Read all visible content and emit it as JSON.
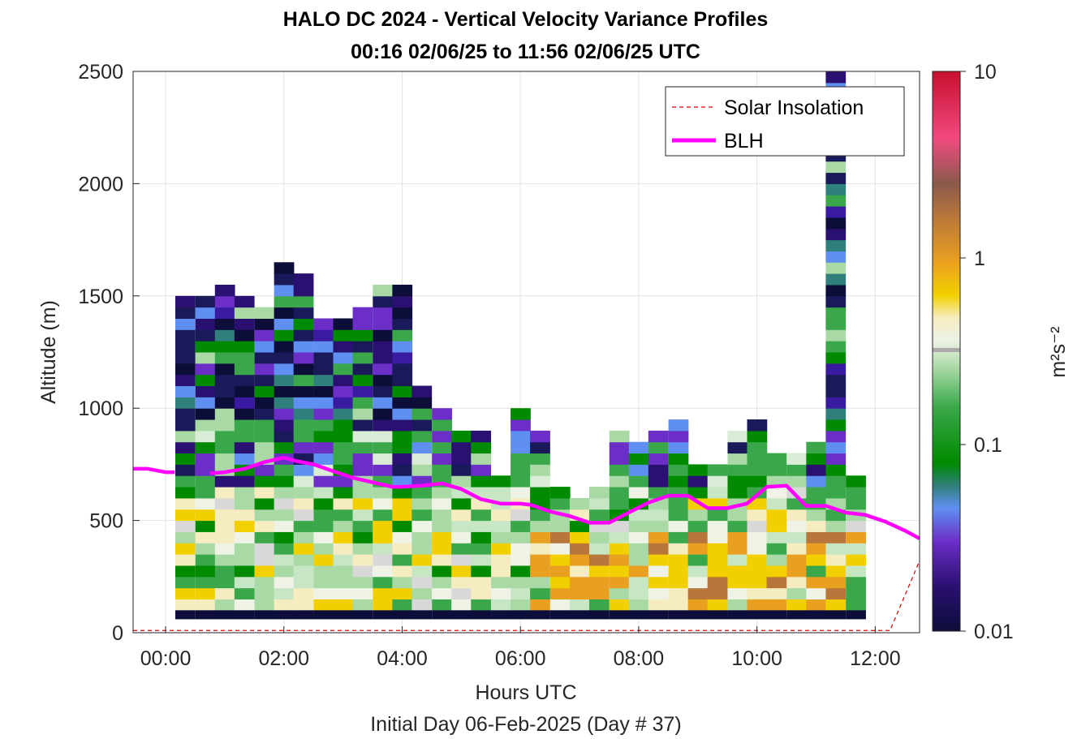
{
  "chart_data": {
    "type": "heatmap",
    "title_line1": "HALO DC 2024 - Vertical Velocity Variance Profiles",
    "title_line2": "00:16 02/06/25 to 11:56 02/06/25  UTC",
    "xlabel": "Hours UTC",
    "xlabel2": "Initial Day 06-Feb-2025 (Day # 37)",
    "ylabel": "Altitude (m)",
    "xlim_hours": [
      -0.55,
      12.75
    ],
    "ylim": [
      0,
      2500
    ],
    "x_ticks": [
      "00:00",
      "02:00",
      "04:00",
      "06:00",
      "08:00",
      "10:00",
      "12:00"
    ],
    "x_tick_hours": [
      0,
      2,
      4,
      6,
      8,
      10,
      12
    ],
    "y_ticks": [
      "0",
      "500",
      "1000",
      "1500",
      "2000",
      "2500"
    ],
    "y_tick_values": [
      0,
      500,
      1000,
      1500,
      2000,
      2500
    ],
    "colorbar": {
      "scale": "log",
      "range": [
        0.01,
        10
      ],
      "tick_labels": [
        "0.01",
        "0.1",
        "1",
        "10"
      ],
      "tick_values": [
        0.01,
        0.1,
        1,
        10
      ],
      "unit_label": "m²s⁻²"
    },
    "grid": true,
    "legend_position": "top-right",
    "legend": [
      {
        "name": "Solar Insolation",
        "style": "dashed",
        "color": "#ff0000"
      },
      {
        "name": "BLH",
        "style": "solid",
        "color": "#ff00ff"
      }
    ],
    "profile_times_hours": [
      0.33,
      0.67,
      1.0,
      1.33,
      1.67,
      2.0,
      2.33,
      2.67,
      3.0,
      3.33,
      3.67,
      4.0,
      4.33,
      4.67,
      5.0,
      5.33,
      5.67,
      6.0,
      6.33,
      6.67,
      7.0,
      7.33,
      7.67,
      8.0,
      8.33,
      8.67,
      9.0,
      9.33,
      9.67,
      10.0,
      10.33,
      10.67,
      11.0,
      11.33,
      11.67
    ],
    "profile_tops_m": [
      1480,
      1480,
      1520,
      1480,
      1420,
      1620,
      1570,
      1380,
      1380,
      1450,
      1530,
      1530,
      1100,
      960,
      900,
      860,
      680,
      960,
      860,
      630,
      590,
      630,
      860,
      820,
      860,
      950,
      730,
      720,
      900,
      920,
      760,
      760,
      850,
      2500,
      670
    ],
    "blh": {
      "x_hours": [
        -0.55,
        -0.3,
        0.0,
        0.15,
        0.5,
        0.75,
        1.0,
        1.33,
        1.67,
        2.0,
        2.2,
        2.5,
        2.83,
        3.17,
        3.5,
        3.83,
        4.0,
        4.33,
        4.67,
        5.0,
        5.33,
        5.67,
        6.0,
        6.17,
        6.5,
        6.83,
        7.17,
        7.5,
        7.83,
        8.17,
        8.5,
        8.83,
        9.17,
        9.5,
        9.83,
        10.17,
        10.5,
        10.83,
        11.17,
        11.5,
        11.83,
        12.17,
        12.5,
        12.75
      ],
      "altitude_m": [
        730,
        730,
        715,
        715,
        null,
        710,
        715,
        730,
        760,
        780,
        765,
        750,
        720,
        690,
        670,
        650,
        650,
        655,
        665,
        640,
        595,
        575,
        575,
        570,
        540,
        520,
        490,
        490,
        535,
        580,
        610,
        610,
        555,
        555,
        575,
        650,
        655,
        565,
        565,
        535,
        525,
        495,
        455,
        420
      ]
    },
    "solar_insolation": {
      "x_hours": [
        -0.55,
        12.25,
        12.75
      ],
      "altitude_m": [
        10,
        10,
        320
      ]
    }
  }
}
